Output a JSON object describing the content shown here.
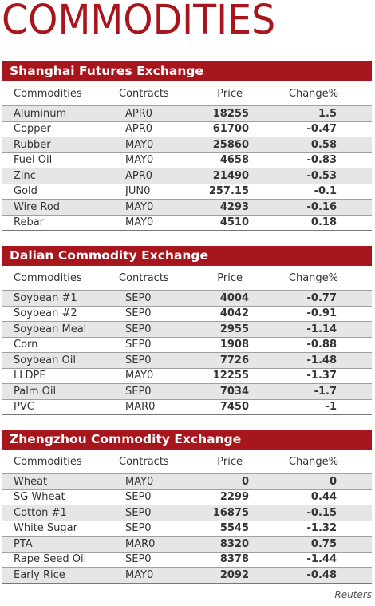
{
  "title": "COMMODITIES",
  "columns": {
    "commodity": "Commodities",
    "contract": "Contracts",
    "price": "Price",
    "change": "Change%"
  },
  "sections": [
    {
      "name": "Shanghai Futures Exchange",
      "rows": [
        {
          "commodity": "Aluminum",
          "contract": "APR0",
          "price": "18255",
          "change": "1.5"
        },
        {
          "commodity": "Copper",
          "contract": "APR0",
          "price": "61700",
          "change": "-0.47"
        },
        {
          "commodity": "Rubber",
          "contract": "MAY0",
          "price": "25860",
          "change": "0.58"
        },
        {
          "commodity": "Fuel Oil",
          "contract": "MAY0",
          "price": "4658",
          "change": "-0.83"
        },
        {
          "commodity": "Zinc",
          "contract": "APR0",
          "price": "21490",
          "change": "-0.53"
        },
        {
          "commodity": "Gold",
          "contract": "JUN0",
          "price": "257.15",
          "change": "-0.1"
        },
        {
          "commodity": "Wire Rod",
          "contract": "MAY0",
          "price": "4293",
          "change": "-0.16"
        },
        {
          "commodity": "Rebar",
          "contract": "MAY0",
          "price": "4510",
          "change": "0.18"
        }
      ]
    },
    {
      "name": "Dalian Commodity Exchange",
      "rows": [
        {
          "commodity": "Soybean #1",
          "contract": "SEP0",
          "price": "4004",
          "change": "-0.77"
        },
        {
          "commodity": "Soybean #2",
          "contract": "SEP0",
          "price": "4042",
          "change": "-0.91"
        },
        {
          "commodity": "Soybean Meal",
          "contract": "SEP0",
          "price": "2955",
          "change": "-1.14"
        },
        {
          "commodity": "Corn",
          "contract": "SEP0",
          "price": "1908",
          "change": "-0.88"
        },
        {
          "commodity": "Soybean Oil",
          "contract": "SEP0",
          "price": "7726",
          "change": "-1.48"
        },
        {
          "commodity": "LLDPE",
          "contract": "MAY0",
          "price": "12255",
          "change": "-1.37"
        },
        {
          "commodity": "Palm Oil",
          "contract": "SEP0",
          "price": "7034",
          "change": "-1.7"
        },
        {
          "commodity": "PVC",
          "contract": "MAR0",
          "price": "7450",
          "change": "-1"
        }
      ]
    },
    {
      "name": "Zhengzhou Commodity Exchange",
      "rows": [
        {
          "commodity": "Wheat",
          "contract": "MAY0",
          "price": "0",
          "change": "0"
        },
        {
          "commodity": "SG Wheat",
          "contract": "SEP0",
          "price": "2299",
          "change": "0.44"
        },
        {
          "commodity": "Cotton #1",
          "contract": "SEP0",
          "price": "16875",
          "change": "-0.15"
        },
        {
          "commodity": "White Sugar",
          "contract": "SEP0",
          "price": "5545",
          "change": "-1.32"
        },
        {
          "commodity": "PTA",
          "contract": "MAR0",
          "price": "8320",
          "change": "0.75"
        },
        {
          "commodity": "Rape Seed Oil",
          "contract": "SEP0",
          "price": "8378",
          "change": "-1.44"
        },
        {
          "commodity": "Early Rice",
          "contract": "MAY0",
          "price": "2092",
          "change": "-0.48"
        }
      ]
    }
  ],
  "credit": "Reuters",
  "colors": {
    "accent": "#a8161d",
    "stripe": "#e6e6e6"
  }
}
